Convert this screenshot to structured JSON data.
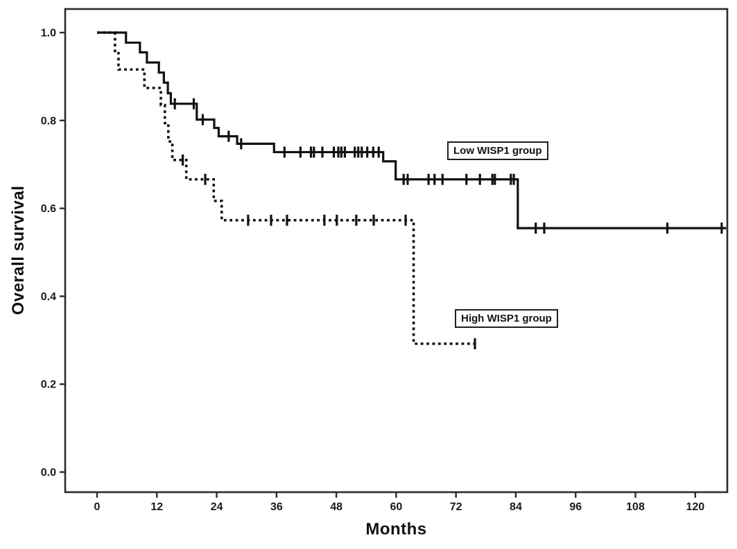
{
  "chart_data": {
    "type": "line",
    "subtype": "kaplan-meier-survival-step",
    "title": "",
    "xlabel": "Months",
    "ylabel": "Overall survival",
    "xlim": [
      0,
      126
    ],
    "ylim": [
      0.0,
      1.0
    ],
    "xticks": [
      "0",
      "12",
      "24",
      "36",
      "48",
      "60",
      "72",
      "84",
      "96",
      "108",
      "120"
    ],
    "yticks": [
      "0.0",
      "0.2",
      "0.4",
      "0.6",
      "0.8",
      "1.0"
    ],
    "grid": false,
    "legend_position": "inline-annotation-boxes",
    "line_color": "#111111",
    "frame_color": "#2b2b2b",
    "series": [
      {
        "name": "Low WISP1 group",
        "line_style": "solid",
        "steps": [
          [
            0,
            1.0
          ],
          [
            5.8,
            0.977
          ],
          [
            8.6,
            0.955
          ],
          [
            10.0,
            0.932
          ],
          [
            12.4,
            0.909
          ],
          [
            13.4,
            0.886
          ],
          [
            14.2,
            0.862
          ],
          [
            14.8,
            0.838
          ],
          [
            20.0,
            0.802
          ],
          [
            23.5,
            0.783
          ],
          [
            24.4,
            0.764
          ],
          [
            28.1,
            0.747
          ],
          [
            35.5,
            0.728
          ],
          [
            57.4,
            0.707
          ],
          [
            59.9,
            0.666
          ],
          [
            84.4,
            0.555
          ]
        ],
        "end_month": 126.2,
        "censor_months": [
          15.6,
          19.4,
          21.2,
          26.4,
          28.9,
          37.6,
          40.8,
          42.9,
          43.5,
          45.2,
          47.5,
          48.4,
          49.0,
          49.7,
          51.7,
          52.4,
          53.1,
          54.2,
          55.4,
          56.5,
          61.5,
          62.3,
          66.5,
          67.7,
          69.3,
          74.1,
          76.8,
          79.3,
          79.8,
          83.0,
          83.6,
          88.0,
          89.7,
          114.4,
          125.3
        ]
      },
      {
        "name": "High WISP1 group",
        "line_style": "dotted",
        "steps": [
          [
            0,
            1.0
          ],
          [
            3.6,
            0.958
          ],
          [
            4.3,
            0.916
          ],
          [
            9.5,
            0.874
          ],
          [
            12.8,
            0.835
          ],
          [
            13.6,
            0.794
          ],
          [
            14.3,
            0.752
          ],
          [
            15.1,
            0.71
          ],
          [
            17.9,
            0.666
          ],
          [
            23.4,
            0.617
          ],
          [
            25.0,
            0.573
          ],
          [
            63.5,
            0.292
          ]
        ],
        "end_month": 76.3,
        "censor_months": [
          17.2,
          21.7,
          30.3,
          34.9,
          38.1,
          45.6,
          48.1,
          52.0,
          55.5,
          61.9,
          75.8
        ]
      }
    ]
  }
}
